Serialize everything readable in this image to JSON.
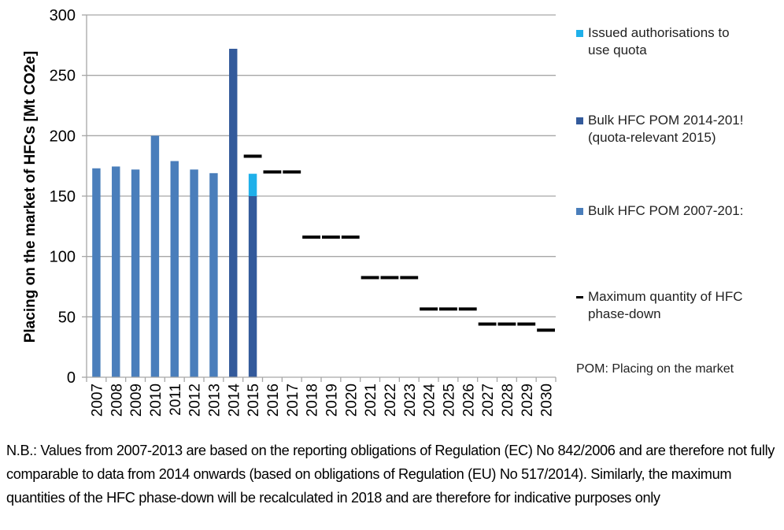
{
  "chart_data": {
    "type": "bar",
    "stacked": true,
    "title": "",
    "xlabel": "",
    "ylabel": "Placing on the market of HFCs [Mt CO2e]",
    "ylim": [
      0,
      300
    ],
    "yticks": [
      0,
      50,
      100,
      150,
      200,
      250,
      300
    ],
    "grid": true,
    "legend_position": "right",
    "categories": [
      "2007",
      "2008",
      "2009",
      "2010",
      "2011",
      "2012",
      "2013",
      "2014",
      "2015",
      "2016",
      "2017",
      "2018",
      "2019",
      "2020",
      "2021",
      "2022",
      "2023",
      "2024",
      "2025",
      "2026",
      "2027",
      "2028",
      "2029",
      "2030"
    ],
    "series": [
      {
        "name": "Bulk HFC POM 2007-2013",
        "legend_label": "Bulk HFC POM 2007-201:",
        "kind": "bar",
        "color": "#4a7ebb",
        "values": [
          173,
          174.5,
          172,
          200,
          179,
          172,
          169,
          null,
          null,
          null,
          null,
          null,
          null,
          null,
          null,
          null,
          null,
          null,
          null,
          null,
          null,
          null,
          null,
          null
        ]
      },
      {
        "name": "Bulk HFC POM 2014-2015 (quota-relevant 2015)",
        "legend_label": "Bulk HFC POM 2014-201!\n(quota-relevant 2015)",
        "kind": "bar",
        "color": "#335a9b",
        "values": [
          null,
          null,
          null,
          null,
          null,
          null,
          null,
          272,
          150,
          null,
          null,
          null,
          null,
          null,
          null,
          null,
          null,
          null,
          null,
          null,
          null,
          null,
          null,
          null
        ]
      },
      {
        "name": "Issued authorisations to use quota",
        "legend_label": "Issued authorisations to\nuse quota",
        "kind": "bar",
        "color": "#1fb0ea",
        "values": [
          null,
          null,
          null,
          null,
          null,
          null,
          null,
          null,
          18.5,
          null,
          null,
          null,
          null,
          null,
          null,
          null,
          null,
          null,
          null,
          null,
          null,
          null,
          null,
          null
        ]
      },
      {
        "name": "Maximum quantity of HFC phase-down",
        "legend_label": "Maximum quantity of HFC\nphase-down",
        "kind": "marker-dash",
        "color": "#000000",
        "values": [
          null,
          null,
          null,
          null,
          null,
          null,
          null,
          null,
          183,
          170,
          170,
          116,
          116,
          116,
          82.5,
          82.5,
          82.5,
          56.5,
          56.5,
          56.5,
          44,
          44,
          44,
          39
        ]
      }
    ],
    "legend_order": [
      2,
      1,
      0,
      3
    ],
    "legend_note": "POM: Placing on the market"
  },
  "footnote": "N.B.: Values from 2007-2013 are based on the reporting obligations of Regulation (EC) No 842/2006 and are therefore not fully comparable to data from 2014 onwards (based on obligations of Regulation (EU) No 517/2014). Similarly, the maximum quantities of the HFC phase-down will be recalculated in 2018 and are therefore for indicative purposes only"
}
